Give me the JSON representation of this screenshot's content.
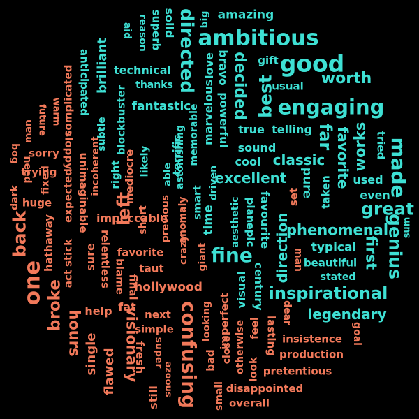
{
  "colors": {
    "background": "#000000",
    "positive": "#3ee0d4",
    "negative": "#f2795a"
  },
  "words": {
    "ambitious": "ambitious",
    "good": "good",
    "engaging": "engaging",
    "worth": "worth",
    "great": "great",
    "made": "made",
    "genius": "genius",
    "phenomenal": "phenomenal",
    "inspirational": "inspirational",
    "legendary": "legendary",
    "fine": "fine",
    "excellent": "excellent",
    "classic": "classic",
    "favorite_1": "favorite",
    "works": "works",
    "directed": "directed",
    "best": "best",
    "decided": "decided",
    "amazing": "amazing",
    "technical": "technical",
    "fantastic": "fantastic",
    "brilliant": "brilliant",
    "thanks": "thanks",
    "bravo": "bravo",
    "marvelous": "marvelous",
    "love": "love",
    "powerful": "powerful",
    "memorable": "memorable",
    "true": "true",
    "telling": "telling",
    "sound": "sound",
    "cool": "cool",
    "far": "far",
    "pure": "pure",
    "taken": "taken",
    "used": "used",
    "even": "even",
    "tried": "tried",
    "sum": "sum",
    "first": "first",
    "direction": "direction",
    "typical": "typical",
    "beautiful": "beautiful",
    "stated": "stated",
    "century": "century",
    "visual": "visual",
    "favourite": "favourite",
    "plan": "plan",
    "epic": "epic",
    "aesthetic": "aesthetic",
    "driven": "driven",
    "time": "time",
    "smart": "smart",
    "astonishing": "astonishing",
    "terrific": "terrific",
    "able": "able",
    "likely": "likely",
    "right": "right",
    "blockbuster": "blockbuster",
    "subtle": "subtle",
    "anticipated": "anticipated",
    "solid": "solid",
    "superb": "superb",
    "reason": "reason",
    "aid": "aid",
    "big": "big",
    "gift": "gift",
    "usual": "usual",
    "set": "set",
    "man_right": "man",
    "dear": "dear",
    "impeccable": "impeccable",
    "favorite_2": "favorite",
    "taut": "taut",
    "hollywood": "hollywood",
    "next": "next",
    "simple": "simple",
    "goal": "goal",
    "insistence": "insistence",
    "production": "production",
    "pretentious": "pretentious",
    "disappointed": "disappointed",
    "overall": "overall",
    "lasting": "lasting",
    "look": "look",
    "feel": "feel",
    "otherwise": "otherwise",
    "close": "close",
    "imperfect": "imperfect",
    "looking": "looking",
    "bad": "bad",
    "small": "small",
    "giant": "giant",
    "anomaly": "anomaly",
    "crazy": "crazy",
    "confusing": "confusing",
    "snooze": "snooze",
    "still": "still",
    "super": "super",
    "fresh": "fresh",
    "final": "final",
    "blame": "blame",
    "fat": "fat",
    "help": "help",
    "visionary": "visionary",
    "flawed": "flawed",
    "single": "single",
    "hours": "hours",
    "broke": "broke",
    "one": "one",
    "back": "back",
    "hathaway": "hathaway",
    "huge": "huge",
    "fixed": "fixed",
    "sorry": "sorry",
    "trying": "trying",
    "need": "need",
    "dark": "dark",
    "bog": "bog",
    "man_left": "man",
    "future": "future",
    "warm": "warm",
    "complicated": "complicated",
    "sloppy": "sloppy",
    "expected": "expected",
    "stick": "stick",
    "act": "act",
    "unimaginable": "unimaginable",
    "incoherent": "incoherent",
    "sure": "sure",
    "relentless": "relentless",
    "mediocre": "mediocre",
    "short": "short",
    "previous": "previous",
    "left": "left"
  }
}
